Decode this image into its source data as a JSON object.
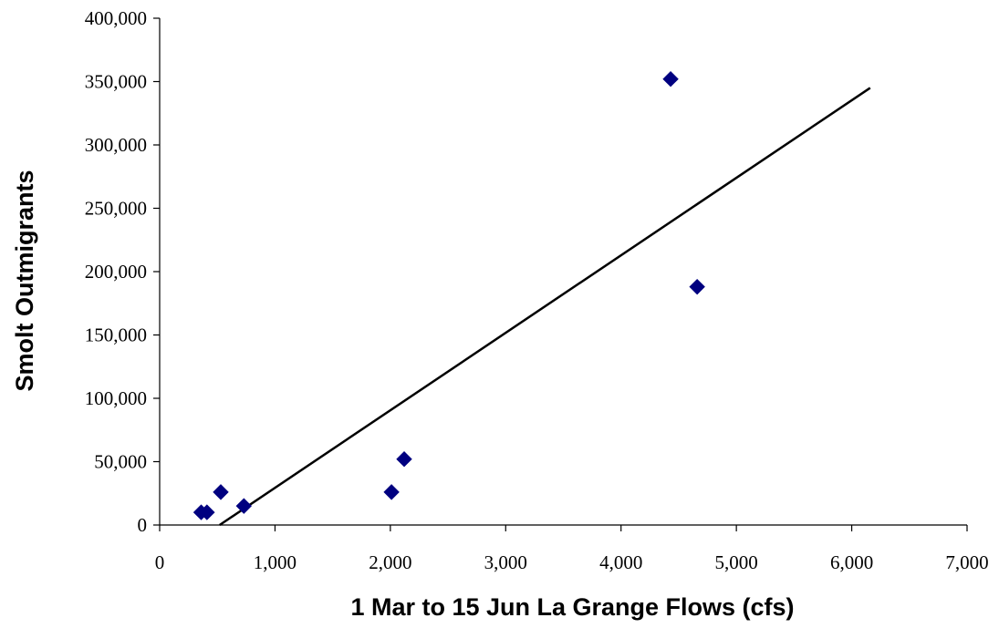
{
  "chart_data": {
    "type": "scatter",
    "title": "",
    "xlabel": "1 Mar to 15 Jun La Grange Flows (cfs)",
    "ylabel": "Smolt Outmigrants",
    "xlim": [
      0,
      7000
    ],
    "ylim": [
      0,
      400000
    ],
    "x_ticks": [
      0,
      1000,
      2000,
      3000,
      4000,
      5000,
      6000,
      7000
    ],
    "x_tick_labels": [
      "0",
      "1,000",
      "2,000",
      "3,000",
      "4,000",
      "5,000",
      "6,000",
      "7,000"
    ],
    "y_ticks": [
      0,
      50000,
      100000,
      150000,
      200000,
      250000,
      300000,
      350000,
      400000
    ],
    "y_tick_labels": [
      "0",
      "50,000",
      "100,000",
      "150,000",
      "200,000",
      "250,000",
      "300,000",
      "350,000",
      "400,000"
    ],
    "grid": false,
    "legend": "none",
    "series": [
      {
        "marker": "diamond",
        "color": "#000080",
        "points": [
          {
            "x": 360,
            "y": 10000
          },
          {
            "x": 410,
            "y": 10000
          },
          {
            "x": 530,
            "y": 26000
          },
          {
            "x": 730,
            "y": 15000
          },
          {
            "x": 2010,
            "y": 26000
          },
          {
            "x": 2120,
            "y": 52000
          },
          {
            "x": 4430,
            "y": 352000
          },
          {
            "x": 4660,
            "y": 188000
          }
        ]
      }
    ],
    "trendline": {
      "type": "linear",
      "color": "#000000",
      "points": [
        {
          "x": 520,
          "y": 0
        },
        {
          "x": 6160,
          "y": 345000
        }
      ]
    }
  }
}
